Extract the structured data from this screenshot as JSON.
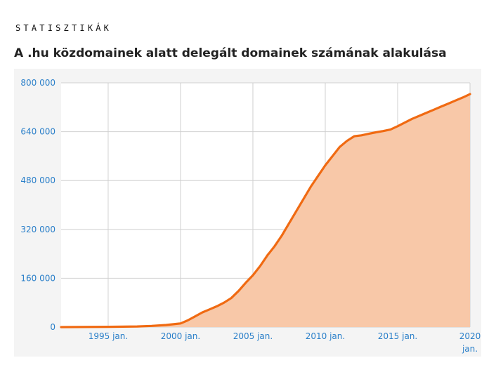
{
  "header": {
    "section_label": "STATISZTIKÁK",
    "title": "A .hu közdomainek alatt delegált domainek számának alakulása"
  },
  "colors": {
    "line": "#f06a12",
    "fill": "#f8c8a8",
    "tick_label": "#2a7fc9",
    "grid": "#d0d0d0",
    "plot_bg": "#ffffff",
    "panel_bg": "#f4f4f4"
  },
  "chart_data": {
    "type": "area",
    "title": "A .hu közdomainek alatt delegált domainek számának alakulása",
    "xlabel": "",
    "ylabel": "",
    "xlim": [
      1991.75,
      2020.0
    ],
    "ylim": [
      0,
      800000
    ],
    "grid": true,
    "legend": "none",
    "y_ticks": [
      0,
      160000,
      320000,
      480000,
      640000,
      800000
    ],
    "y_tick_labels": [
      "0",
      "160 000",
      "320 000",
      "480 000",
      "640 000",
      "800 000"
    ],
    "x_ticks": [
      1995,
      2000,
      2005,
      2010,
      2015,
      2020
    ],
    "x_tick_labels": [
      "1995 jan.",
      "2000 jan.",
      "2005 jan.",
      "2010 jan.",
      "2015 jan.",
      "2020 jan."
    ],
    "series": [
      {
        "x": [
          1991.75,
          1995.0,
          1997.0,
          1998.0,
          1999.0,
          2000.0,
          2000.5,
          2001.0,
          2001.5,
          2002.0,
          2002.5,
          2003.0,
          2003.5,
          2004.0,
          2004.5,
          2005.0,
          2005.5,
          2006.0,
          2006.5,
          2007.0,
          2007.5,
          2008.0,
          2008.5,
          2009.0,
          2009.5,
          2010.0,
          2010.5,
          2011.0,
          2011.5,
          2012.0,
          2012.5,
          2013.0,
          2013.5,
          2014.0,
          2014.5,
          2015.0,
          2015.5,
          2016.0,
          2016.5,
          2017.0,
          2017.5,
          2018.0,
          2018.5,
          2019.0,
          2019.5,
          2020.0
        ],
        "values": [
          0,
          1000,
          2000,
          4000,
          7000,
          12000,
          22000,
          35000,
          48000,
          58000,
          68000,
          80000,
          95000,
          118000,
          145000,
          170000,
          200000,
          235000,
          265000,
          300000,
          340000,
          380000,
          420000,
          460000,
          495000,
          530000,
          560000,
          590000,
          610000,
          625000,
          628000,
          633000,
          638000,
          642000,
          647000,
          658000,
          670000,
          682000,
          692000,
          702000,
          712000,
          722000,
          732000,
          742000,
          752000,
          763000
        ]
      }
    ]
  }
}
